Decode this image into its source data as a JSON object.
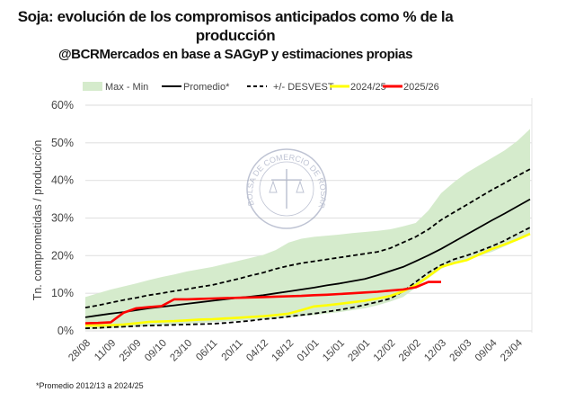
{
  "header": {
    "title_line1": "Soja: evolución de los compromisos anticipados como % de la",
    "title_line2": "producción",
    "subtitle": "@BCRMercados en base a SAGyP y estimaciones propias"
  },
  "watermark": {
    "text": "BOLSA DE COMERCIO DE ROSARIO"
  },
  "footnote": "*Promedio 2012/13 a 2024/25",
  "chart_data": {
    "type": "line",
    "title": "Soja: evolución de los compromisos anticipados como % de la producción",
    "xlabel": "",
    "ylabel": "Tn. comprometidas / producción",
    "ylim": [
      0,
      60
    ],
    "yticks": [
      "0%",
      "10%",
      "20%",
      "30%",
      "40%",
      "50%",
      "60%"
    ],
    "ytick_values": [
      0,
      10,
      20,
      30,
      40,
      50,
      60
    ],
    "grid": true,
    "legend_position": "top",
    "x_tick_labels": [
      "28/08",
      "11/09",
      "25/09",
      "09/10",
      "23/10",
      "06/11",
      "20/11",
      "04/12",
      "18/12",
      "01/01",
      "15/01",
      "29/01",
      "12/02",
      "26/02",
      "12/03",
      "26/03",
      "09/04",
      "23/04"
    ],
    "x_tick_every_weeks": 2,
    "n_weeks": 36,
    "legend": [
      "Max - Min",
      "Promedio*",
      "+/- DESVEST",
      "2024/25",
      "2025/26"
    ],
    "band": {
      "name": "Max - Min",
      "color": "#d5ebcc",
      "max": [
        9.0,
        10.0,
        11.0,
        11.8,
        12.6,
        13.5,
        14.3,
        15.0,
        15.8,
        16.4,
        17.0,
        17.8,
        18.6,
        19.4,
        20.2,
        21.5,
        23.5,
        24.5,
        25.0,
        25.3,
        25.6,
        26.0,
        26.3,
        26.6,
        27.0,
        27.8,
        28.7,
        32.0,
        36.6,
        39.5,
        42.0,
        44.0,
        46.0,
        48.0,
        50.5,
        53.7
      ],
      "min": [
        0.3,
        0.5,
        0.7,
        0.9,
        1.1,
        1.3,
        1.5,
        1.7,
        1.9,
        2.1,
        2.3,
        2.5,
        2.7,
        2.9,
        3.1,
        3.3,
        3.6,
        3.9,
        4.2,
        4.6,
        5.0,
        5.5,
        6.0,
        6.8,
        7.8,
        9.0,
        11.5,
        14.0,
        16.5,
        18.0,
        19.0,
        20.0,
        21.0,
        22.5,
        24.0,
        25.5
      ]
    },
    "series": [
      {
        "name": "Promedio*",
        "color": "#000000",
        "style": "solid",
        "values": [
          3.6,
          4.1,
          4.6,
          5.0,
          5.5,
          6.0,
          6.4,
          6.8,
          7.2,
          7.6,
          8.0,
          8.4,
          8.8,
          9.1,
          9.5,
          10.0,
          10.5,
          11.0,
          11.5,
          12.1,
          12.6,
          13.2,
          13.8,
          14.8,
          15.9,
          17.0,
          18.5,
          20.1,
          21.8,
          23.7,
          25.6,
          27.5,
          29.4,
          31.2,
          33.1,
          35.0
        ]
      },
      {
        "name": "+/- DESVEST (sup)",
        "color": "#000000",
        "style": "dashed",
        "values": [
          6.2,
          6.8,
          7.5,
          8.2,
          8.8,
          9.5,
          10.0,
          10.6,
          11.1,
          11.7,
          12.2,
          13.0,
          13.8,
          14.7,
          15.5,
          16.5,
          17.3,
          18.0,
          18.5,
          19.0,
          19.5,
          20.0,
          20.5,
          21.0,
          22.0,
          23.5,
          25.0,
          27.0,
          29.5,
          31.5,
          33.5,
          35.5,
          37.5,
          39.3,
          41.2,
          43.0
        ]
      },
      {
        "name": "+/- DESVEST (inf)",
        "color": "#000000",
        "style": "dashed",
        "values": [
          0.7,
          0.8,
          1.0,
          1.1,
          1.3,
          1.4,
          1.5,
          1.6,
          1.7,
          1.8,
          1.9,
          2.1,
          2.4,
          2.7,
          3.1,
          3.4,
          3.8,
          4.2,
          4.6,
          5.1,
          5.6,
          6.2,
          6.9,
          7.7,
          8.6,
          10.5,
          13.0,
          15.5,
          17.5,
          19.0,
          20.0,
          21.2,
          22.5,
          24.0,
          25.8,
          27.5
        ]
      },
      {
        "name": "2024/25",
        "color": "#ffff00",
        "style": "solid",
        "values": [
          1.4,
          1.4,
          1.5,
          1.7,
          2.0,
          2.4,
          2.5,
          2.6,
          2.8,
          3.0,
          3.1,
          3.3,
          3.5,
          3.7,
          3.9,
          4.2,
          4.6,
          5.5,
          6.5,
          6.8,
          7.2,
          7.6,
          8.0,
          8.6,
          9.3,
          10.5,
          12.2,
          14.5,
          17.0,
          18.0,
          18.8,
          20.3,
          21.8,
          23.0,
          24.3,
          25.8
        ]
      },
      {
        "name": "2025/26",
        "color": "#ff0000",
        "style": "solid",
        "values": [
          2.0,
          2.1,
          2.3,
          4.8,
          6.0,
          6.3,
          6.6,
          8.4,
          8.4,
          8.5,
          8.6,
          8.7,
          8.8,
          8.9,
          9.0,
          9.1,
          9.2,
          9.3,
          9.5,
          9.6,
          9.8,
          10.0,
          10.2,
          10.4,
          10.7,
          11.0,
          11.6,
          13.0,
          13.0
        ]
      }
    ]
  }
}
